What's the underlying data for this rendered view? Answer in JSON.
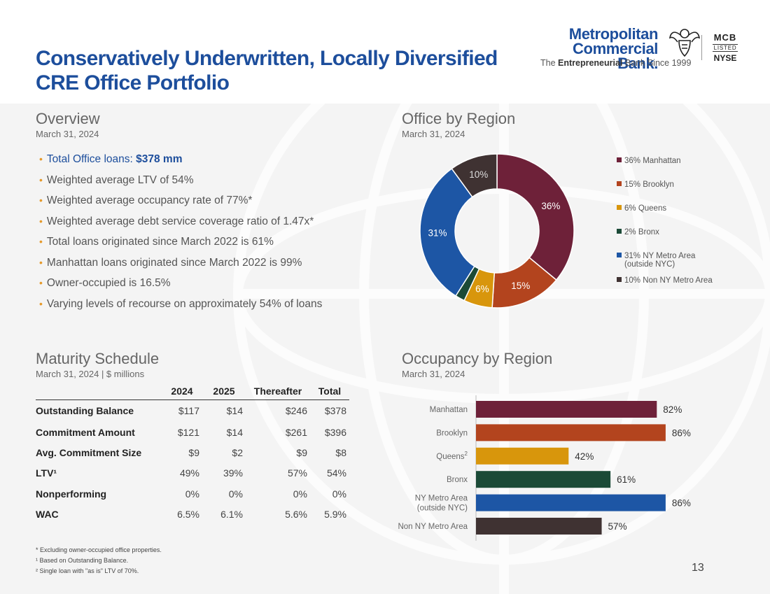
{
  "header": {
    "title_line1": "Conservatively Underwritten, Locally Diversified",
    "title_line2": "CRE Office Portfolio",
    "logo": {
      "name_line1": "Metropolitan",
      "name_line2": "Commercial Bank.",
      "tagline_pre": "The ",
      "tagline_bold": "Entrepreneurial",
      "tagline_post": " Bank Since 1999",
      "ticker": "MCB",
      "listed": "LISTED",
      "exchange": "NYSE",
      "icon": "eagle-icon"
    }
  },
  "overview": {
    "title": "Overview",
    "date": "March 31, 2024",
    "bullet_first_prefix": "Total Office loans: ",
    "bullet_first_value": "$378 mm",
    "bullets": [
      "Weighted average LTV of 54%",
      "Weighted average occupancy rate of 77%*",
      "Weighted average debt service coverage ratio of 1.47x*",
      "Total loans originated since March 2022 is 61%",
      "Manhattan loans originated since March 2022 is 99%",
      "Owner-occupied is 16.5%",
      "Varying levels of recourse on approximately 54% of loans"
    ],
    "bullet_symbol": "•"
  },
  "maturity": {
    "title": "Maturity Schedule",
    "subtitle": "March 31, 2024 | $ millions",
    "columns": [
      "2024",
      "2025",
      "Thereafter",
      "Total"
    ],
    "rows": [
      {
        "label": "Outstanding Balance",
        "values": [
          "$117",
          "$14",
          "$246",
          "$378"
        ]
      },
      {
        "label": "Commitment Amount",
        "values": [
          "$121",
          "$14",
          "$261",
          "$396"
        ]
      },
      {
        "label": "Avg. Commitment Size",
        "values": [
          "$9",
          "$2",
          "$9",
          "$8"
        ]
      },
      {
        "label": "LTV¹",
        "values": [
          "49%",
          "39%",
          "57%",
          "54%"
        ]
      },
      {
        "label": "Nonperforming",
        "values": [
          "0%",
          "0%",
          "0%",
          "0%"
        ]
      },
      {
        "label": "WAC",
        "values": [
          "6.5%",
          "6.1%",
          "5.6%",
          "5.9%"
        ]
      }
    ]
  },
  "office_region": {
    "title": "Office by Region",
    "date": "March 31, 2024"
  },
  "occupancy_region": {
    "title": "Occupancy by Region",
    "date": "March 31, 2024"
  },
  "footnotes": [
    "* Excluding owner-occupied office properties.",
    "¹ Based on Outstanding Balance.",
    "² Single loan with \"as is\" LTV of 70%."
  ],
  "page_number": "13",
  "chart_data": [
    {
      "type": "pie",
      "title": "Office by Region",
      "subtitle": "March 31, 2024",
      "donut": true,
      "legend_position": "right",
      "slices": [
        {
          "label": "Manhattan",
          "legend": [
            "36% Manhattan"
          ],
          "value": 36,
          "display": "36%",
          "color": "#6e2139"
        },
        {
          "label": "Brooklyn",
          "legend": [
            "15% Brooklyn"
          ],
          "value": 15,
          "display": "15%",
          "color": "#b3441e"
        },
        {
          "label": "Queens",
          "legend": [
            "6% Queens"
          ],
          "value": 6,
          "display": "6%",
          "color": "#d8960c"
        },
        {
          "label": "Bronx",
          "legend": [
            "2% Bronx"
          ],
          "value": 2,
          "display": "",
          "color": "#1b4a37"
        },
        {
          "label": "NY Metro Area (outside NYC)",
          "legend": [
            "31% NY Metro Area",
            "(outside NYC)"
          ],
          "value": 31,
          "display": "31%",
          "color": "#1d56a5"
        },
        {
          "label": "Non NY Metro Area",
          "legend": [
            "10% Non NY Metro Area"
          ],
          "value": 10,
          "display": "10%",
          "color": "#3f3232"
        }
      ]
    },
    {
      "type": "bar",
      "orientation": "horizontal",
      "title": "Occupancy by Region",
      "subtitle": "March 31, 2024",
      "xlim": [
        0,
        100
      ],
      "grid": false,
      "categories": [
        {
          "lines": [
            "Manhattan"
          ],
          "sup": ""
        },
        {
          "lines": [
            "Brooklyn"
          ],
          "sup": ""
        },
        {
          "lines": [
            "Queens"
          ],
          "sup": "2"
        },
        {
          "lines": [
            "Bronx"
          ],
          "sup": ""
        },
        {
          "lines": [
            "NY Metro Area",
            "(outside NYC)"
          ],
          "sup": ""
        },
        {
          "lines": [
            "Non NY Metro Area"
          ],
          "sup": ""
        }
      ],
      "values": [
        82,
        86,
        42,
        61,
        86,
        57
      ],
      "labels": [
        "82%",
        "86%",
        "42%",
        "61%",
        "86%",
        "57%"
      ],
      "colors": [
        "#6e2139",
        "#b3441e",
        "#d8960c",
        "#1b4a37",
        "#1d56a5",
        "#3f3232"
      ]
    }
  ]
}
